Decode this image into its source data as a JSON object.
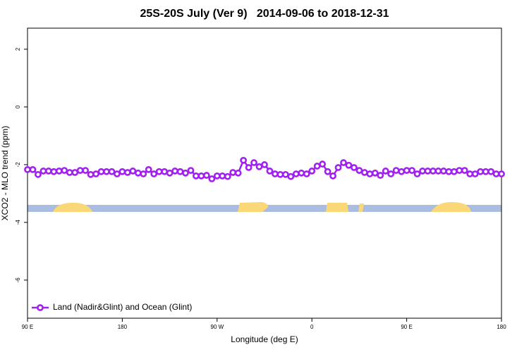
{
  "chart_data": {
    "type": "line",
    "title": "25S-20S July (Ver 9)   2014-09-06 to 2018-12-31",
    "x_label": "Longitude (deg E)",
    "y_label": "XCO2 - MLO trend (ppm)",
    "x": [
      90,
      95,
      100,
      105,
      110,
      115,
      120,
      125,
      130,
      135,
      140,
      145,
      150,
      155,
      160,
      165,
      170,
      175,
      180,
      185,
      190,
      195,
      200,
      205,
      210,
      215,
      220,
      225,
      230,
      235,
      240,
      245,
      250,
      255,
      260,
      265,
      270,
      275,
      280,
      285,
      290,
      295,
      300,
      305,
      310,
      315,
      320,
      325,
      330,
      335,
      340,
      345,
      350,
      355,
      360,
      365,
      370,
      375,
      380,
      385,
      390,
      395,
      400,
      405,
      410,
      415,
      420,
      425,
      430,
      435,
      440,
      445,
      450,
      455,
      460,
      465,
      470,
      475,
      480,
      485,
      490,
      495,
      500,
      505,
      510,
      515,
      520,
      525,
      530,
      535,
      540
    ],
    "series": [
      {
        "name": "Land (Nadir&Glint) and Ocean (Glint)",
        "color": "#a020f0",
        "values": [
          -2.17,
          -2.17,
          -2.34,
          -2.22,
          -2.22,
          -2.24,
          -2.22,
          -2.2,
          -2.27,
          -2.27,
          -2.2,
          -2.2,
          -2.34,
          -2.32,
          -2.24,
          -2.24,
          -2.24,
          -2.32,
          -2.24,
          -2.27,
          -2.22,
          -2.29,
          -2.32,
          -2.17,
          -2.32,
          -2.24,
          -2.24,
          -2.29,
          -2.22,
          -2.24,
          -2.29,
          -2.2,
          -2.39,
          -2.39,
          -2.37,
          -2.49,
          -2.39,
          -2.39,
          -2.41,
          -2.27,
          -2.29,
          -1.85,
          -2.1,
          -1.93,
          -2.07,
          -2.0,
          -2.22,
          -2.32,
          -2.34,
          -2.34,
          -2.41,
          -2.32,
          -2.29,
          -2.32,
          -2.22,
          -2.05,
          -1.98,
          -2.24,
          -2.39,
          -2.1,
          -1.93,
          -2.02,
          -2.1,
          -2.2,
          -2.27,
          -2.32,
          -2.29,
          -2.37,
          -2.22,
          -2.32,
          -2.2,
          -2.24,
          -2.2,
          -2.2,
          -2.32,
          -2.22,
          -2.22,
          -2.22,
          -2.22,
          -2.22,
          -2.24,
          -2.24,
          -2.2,
          -2.2,
          -2.32,
          -2.32,
          -2.24,
          -2.24,
          -2.24,
          -2.32,
          -2.32
        ]
      }
    ],
    "xlim": [
      90,
      540
    ],
    "xticks": [
      {
        "value": 90,
        "label": "90 E"
      },
      180,
      {
        "value": 270,
        "label": "90 W"
      },
      {
        "value": 360,
        "label": "0"
      },
      {
        "value": 450,
        "label": "90 E"
      },
      {
        "value": 540,
        "label": "180"
      }
    ],
    "ylim": [
      -7.32,
      2.73
    ],
    "yticks": [
      2,
      0,
      -2,
      -4,
      -6
    ],
    "legend": "bottom-left"
  }
}
